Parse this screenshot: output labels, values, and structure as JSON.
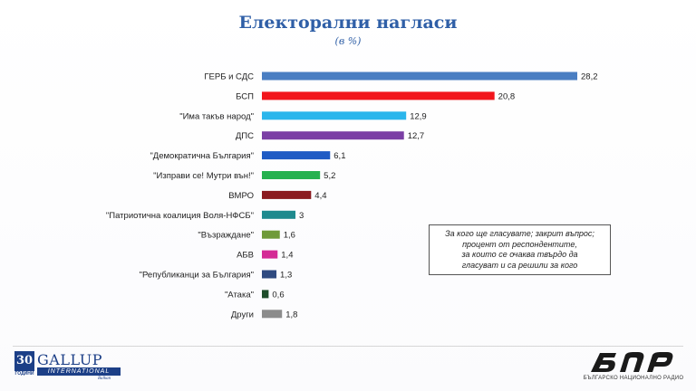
{
  "header": {
    "title": "Електорални нагласи",
    "subtitle": "(в %)"
  },
  "chart_data": {
    "type": "bar",
    "orientation": "horizontal",
    "title": "Електорални нагласи",
    "subtitle": "(в %)",
    "categories": [
      "ГЕРБ и СДС",
      "БСП",
      "\"Има такъв народ\"",
      "ДПС",
      "\"Демократична България\"",
      "\"Изправи се! Мутри вън!\"",
      "ВМРО",
      "\"Патриотична коалиция Воля-НФСБ\"",
      "\"Възраждане\"",
      "АБВ",
      "\"Републиканци за България\"",
      "\"Атака\"",
      "Други"
    ],
    "values": [
      28.2,
      20.8,
      12.9,
      12.7,
      6.1,
      5.2,
      4.4,
      3,
      1.6,
      1.4,
      1.3,
      0.6,
      1.8
    ],
    "value_labels": [
      "28,2",
      "20,8",
      "12,9",
      "12,7",
      "6,1",
      "5,2",
      "4,4",
      "3",
      "1,6",
      "1,4",
      "1,3",
      "0,6",
      "1,8"
    ],
    "colors": [
      "#4a7ec2",
      "#f2161c",
      "#2bb6ec",
      "#7b3fa5",
      "#1f5bc4",
      "#26b14f",
      "#8b1a1f",
      "#1f8a8e",
      "#6f9a3a",
      "#d42b95",
      "#2f4a80",
      "#1e4d2a",
      "#8c8c8c"
    ],
    "xlim": [
      0,
      28.2
    ],
    "grid": false,
    "legend": "none"
  },
  "note": {
    "lines": [
      "За кого ще гласувате; закрит въпрос;",
      "процент от респондентите,",
      "за които се очаква твърдо да",
      "гласуват и са решили за кого"
    ]
  },
  "logos": {
    "gallup_years": "30",
    "gallup_years_label": "ГОДИНИ",
    "gallup_name": "GALLUP",
    "gallup_international": "INTERNATIONAL",
    "gallup_balkan": "Balkan",
    "bnr_name": "БЪЛГАРСКО НАЦИОНАЛНО РАДИО"
  }
}
